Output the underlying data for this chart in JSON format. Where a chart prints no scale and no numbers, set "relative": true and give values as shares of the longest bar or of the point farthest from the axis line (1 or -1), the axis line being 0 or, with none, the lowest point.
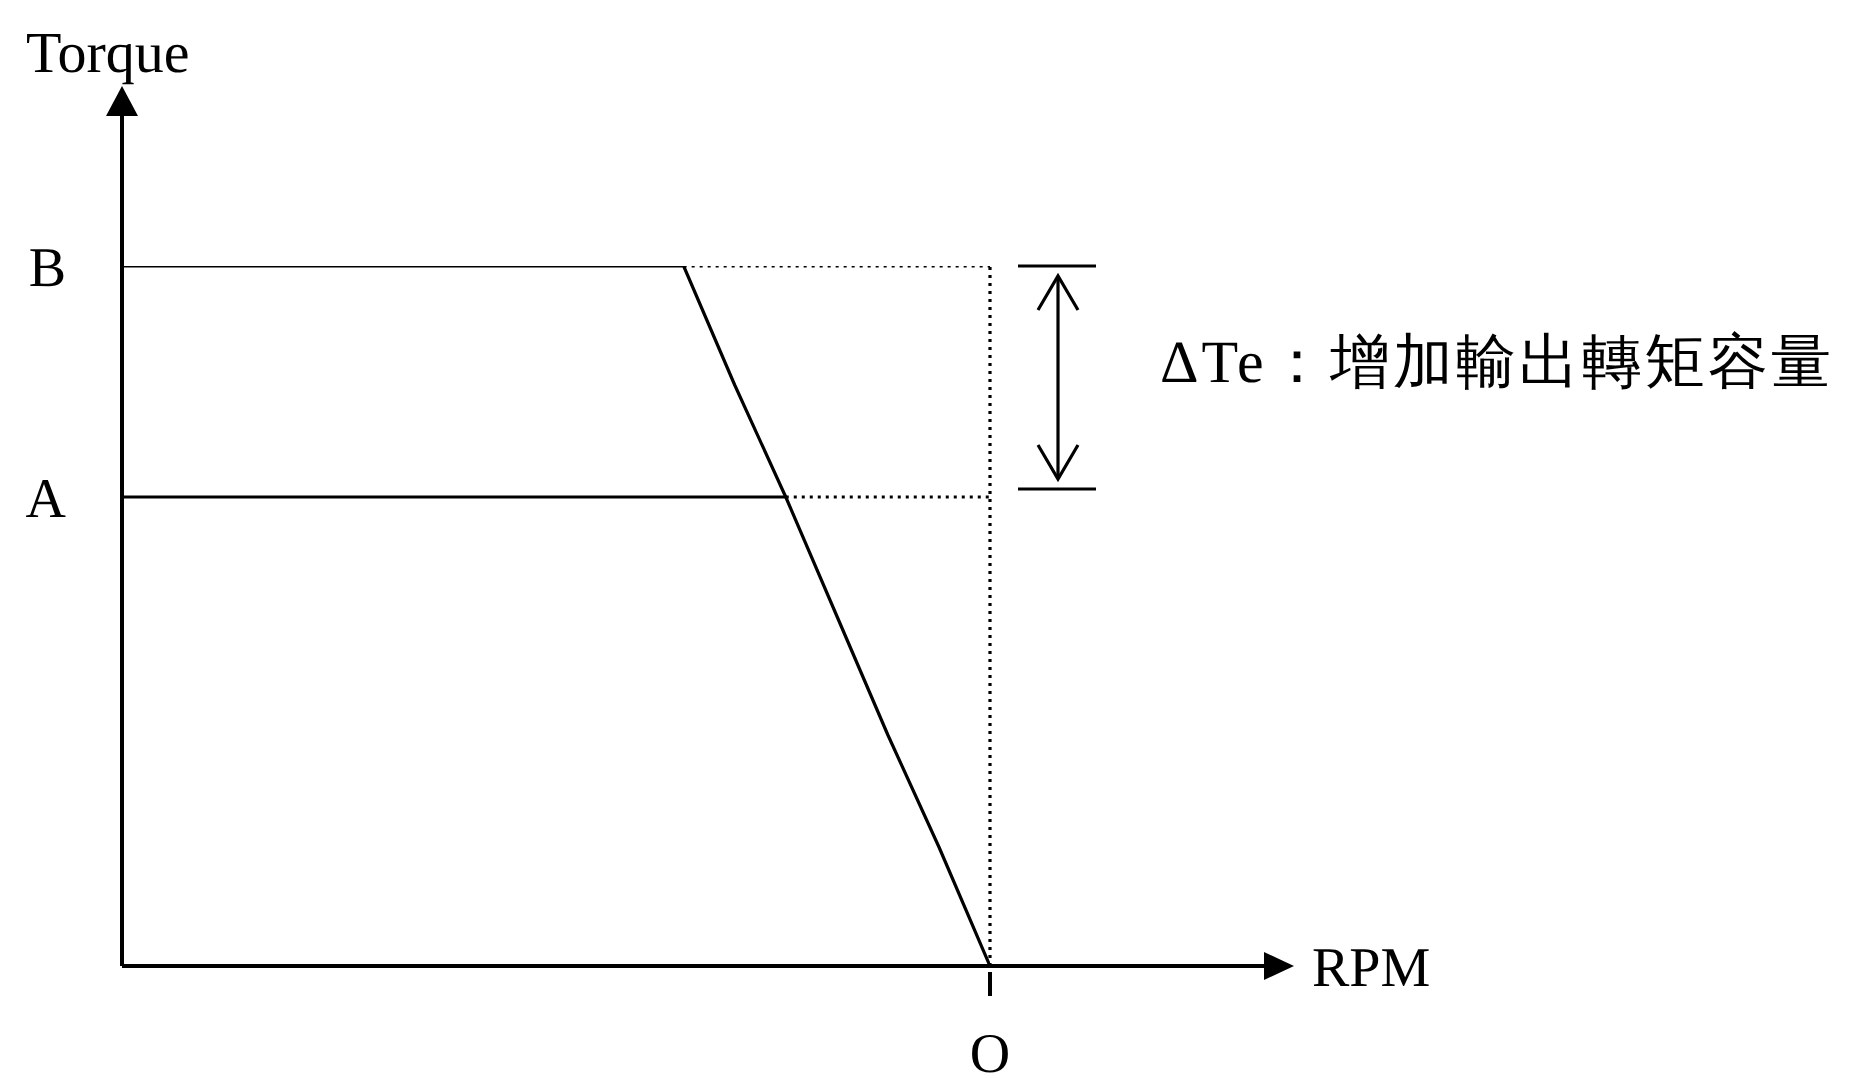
{
  "chart_data": {
    "type": "line",
    "relative": true,
    "ylabel": "Torque",
    "categories": [
      null,
      null,
      null,
      null,
      null,
      null,
      null,
      null,
      null,
      null,
      null,
      null,
      null,
      null,
      null,
      null,
      null,
      null
    ],
    "annotations": [
      "ΔTe：增加輸出轉矩容量",
      "RPM",
      "B",
      "A",
      {
        "text": "O",
        "y": 0
      }
    ],
    "series": [
      {
        "color": "#000000",
        "line_style": "solid",
        "values": [
          1,
          1,
          1,
          1,
          1,
          1,
          1,
          1,
          1,
          1,
          1,
          1,
          0.83,
          0.67,
          0.5,
          0.33,
          0.17,
          0
        ]
      },
      {
        "color": "#000000",
        "line_style": "solid",
        "values": [
          0.67,
          0.67,
          0.67,
          0.67,
          0.67,
          0.67,
          0.67,
          0.67,
          0.67,
          0.67,
          0.67,
          0.67,
          0.67,
          0.67,
          null,
          null,
          null,
          null
        ]
      },
      {
        "color": "#000000",
        "line_style": "dotted",
        "values": [
          null,
          null,
          null,
          null,
          null,
          null,
          null,
          null,
          null,
          null,
          null,
          1,
          1,
          1,
          1,
          1,
          1,
          1
        ]
      },
      {
        "color": "#000000",
        "line_style": "dotted",
        "values": [
          null,
          null,
          null,
          null,
          null,
          null,
          null,
          null,
          null,
          null,
          null,
          null,
          null,
          0.67,
          0.67,
          0.67,
          0.67,
          0.67
        ]
      }
    ]
  }
}
